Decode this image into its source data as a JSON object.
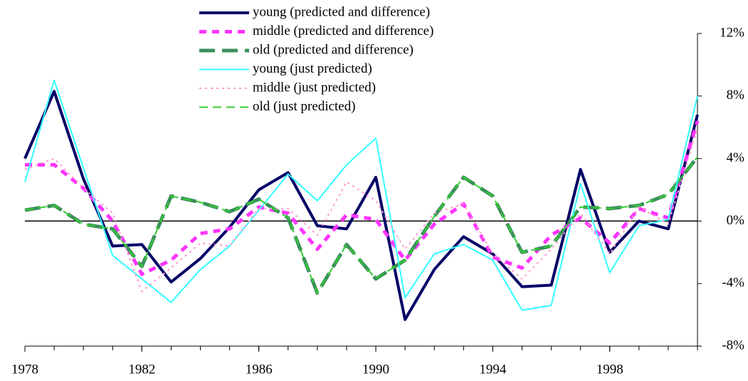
{
  "chart_data": {
    "type": "line",
    "x": [
      1978,
      1979,
      1980,
      1981,
      1982,
      1983,
      1984,
      1985,
      1986,
      1987,
      1988,
      1989,
      1990,
      1991,
      1992,
      1993,
      1994,
      1995,
      1996,
      1997,
      1998,
      1999,
      2000,
      2001
    ],
    "xlim": [
      1978,
      2001
    ],
    "xticks": [
      1978,
      1982,
      1986,
      1990,
      1994,
      1998
    ],
    "ylim": [
      -8,
      12
    ],
    "yticks": [
      {
        "value": -8,
        "label": "-8%"
      },
      {
        "value": -4,
        "label": "-4%"
      },
      {
        "value": 0,
        "label": "0%"
      },
      {
        "value": 4,
        "label": "4%"
      },
      {
        "value": 8,
        "label": "8%"
      },
      {
        "value": 12,
        "label": "12%"
      }
    ],
    "y_axis_side": "right",
    "legend": "top",
    "series": [
      {
        "name": "young (predicted and difference)",
        "color": "#000066",
        "style": "thick-solid",
        "values": [
          4.0,
          8.3,
          2.7,
          -1.6,
          -1.5,
          -3.9,
          -2.4,
          -0.4,
          2.0,
          3.1,
          -0.3,
          -0.5,
          2.8,
          -6.3,
          -3.1,
          -1.0,
          -2.1,
          -4.2,
          -4.1,
          3.3,
          -2.0,
          0.0,
          -0.5,
          6.8
        ]
      },
      {
        "name": "middle (predicted and difference)",
        "color": "#ff33ff",
        "style": "thick-dashed",
        "values": [
          3.6,
          3.6,
          2.1,
          0.0,
          -3.4,
          -2.5,
          -0.8,
          -0.5,
          0.9,
          0.5,
          -1.8,
          0.4,
          0.1,
          -2.5,
          -0.2,
          1.1,
          -2.3,
          -3.0,
          -0.9,
          0.2,
          -1.4,
          0.8,
          0.2,
          6.4
        ]
      },
      {
        "name": "old (predicted and difference)",
        "color": "#3a8f5a",
        "style": "thick-longdash",
        "values": [
          0.7,
          1.0,
          -0.2,
          -0.5,
          -2.9,
          1.6,
          1.2,
          0.6,
          1.4,
          0.2,
          -4.6,
          -1.5,
          -3.7,
          -2.5,
          0.3,
          2.8,
          1.6,
          -2.0,
          -1.6,
          0.9,
          0.8,
          1.0,
          1.7,
          4.1
        ]
      },
      {
        "name": "young (just predicted)",
        "color": "#33ffff",
        "style": "thin-solid",
        "values": [
          2.5,
          9.0,
          3.4,
          -2.2,
          -3.7,
          -5.2,
          -3.1,
          -1.6,
          0.7,
          3.0,
          1.3,
          3.6,
          5.3,
          -4.9,
          -2.1,
          -1.5,
          -2.5,
          -5.7,
          -5.4,
          2.4,
          -3.3,
          -0.3,
          0.1,
          8.0
        ]
      },
      {
        "name": "middle (just predicted)",
        "color": "#ff99cc",
        "style": "thin-dotted",
        "values": [
          3.3,
          4.0,
          2.1,
          0.5,
          -4.5,
          -3.0,
          -1.4,
          -1.6,
          0.8,
          0.8,
          -0.9,
          2.5,
          1.3,
          -1.8,
          0.5,
          1.1,
          -2.1,
          -3.7,
          -1.8,
          0.5,
          -2.1,
          0.9,
          -0.2,
          5.9
        ]
      },
      {
        "name": "old (just predicted)",
        "color": "#33cc33",
        "style": "thin-dashed",
        "values": [
          0.7,
          1.0,
          -0.2,
          -0.5,
          -2.9,
          1.6,
          1.2,
          0.6,
          1.4,
          0.2,
          -4.6,
          -1.5,
          -3.7,
          -2.5,
          0.3,
          2.8,
          1.6,
          -2.0,
          -1.6,
          0.9,
          0.8,
          1.0,
          1.7,
          4.1
        ]
      }
    ]
  }
}
